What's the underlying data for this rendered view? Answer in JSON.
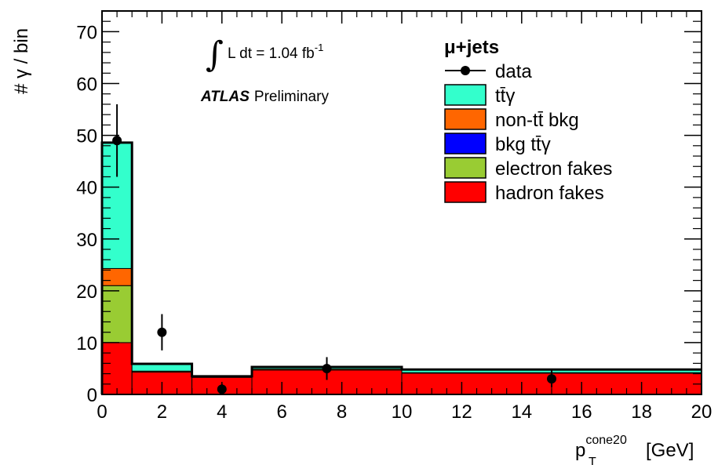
{
  "chart_data": {
    "type": "bar",
    "x": {
      "label_main": "p",
      "label_sub": "T",
      "label_sup": "cone20",
      "label_unit": "[GeV]",
      "lim": [
        0,
        20
      ],
      "ticks": [
        0,
        2,
        4,
        6,
        8,
        10,
        12,
        14,
        16,
        18,
        20
      ]
    },
    "y": {
      "label": "# γ / bin",
      "lim": [
        0,
        74
      ],
      "ticks": [
        0,
        10,
        20,
        30,
        40,
        50,
        60,
        70
      ]
    },
    "bin_edges": [
      0,
      1,
      3,
      5,
      10,
      20
    ],
    "stack": [
      {
        "name": "hadron fakes",
        "color": "#ff0000",
        "values": [
          10.0,
          4.3,
          3.3,
          4.7,
          4.1
        ]
      },
      {
        "name": "electron fakes",
        "color": "#99cc33",
        "values": [
          11.0,
          0.0,
          0.0,
          0.0,
          0.0
        ]
      },
      {
        "name": "bkg tt̄γ",
        "color": "#0000ff",
        "values": [
          0.0,
          0.0,
          0.0,
          0.0,
          0.0
        ]
      },
      {
        "name": "non-tt̄ bkg",
        "color": "#ff6600",
        "values": [
          3.3,
          0.2,
          0.1,
          0.2,
          0.1
        ]
      },
      {
        "name": "tt̄γ",
        "color": "#33ffcc",
        "values": [
          24.3,
          1.4,
          0.1,
          0.4,
          0.6
        ]
      }
    ],
    "data": {
      "name": "data",
      "x": [
        0.5,
        2,
        4,
        7.5,
        15
      ],
      "y": [
        49,
        12,
        1,
        5,
        3
      ],
      "err": [
        7.0,
        3.5,
        1.0,
        2.2,
        1.7
      ]
    },
    "legend": {
      "title": "μ+jets",
      "entries": [
        "data",
        "tt̄γ",
        "non-tt̄ bkg",
        "bkg tt̄γ",
        "electron fakes",
        "hadron fakes"
      ],
      "placement": "top-right"
    },
    "annotations": {
      "lumi_integral": "∫",
      "lumi_text": "L dt = 1.04 fb",
      "lumi_sup": "-1",
      "atlas_bold": "ATLAS",
      "atlas_rest": "Preliminary"
    }
  }
}
